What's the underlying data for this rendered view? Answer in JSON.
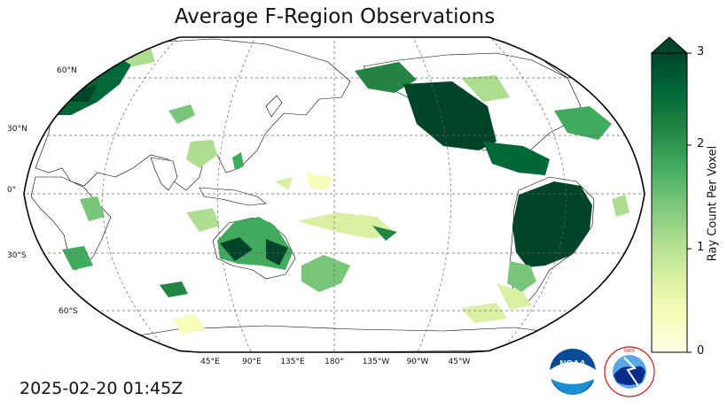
{
  "title": "Average F-Region Observations",
  "timestamp": "2025-02-20 01:45Z",
  "colorbar": {
    "label": "Ray Count Per Voxel",
    "ticks": [
      "0",
      "1",
      "2",
      "3"
    ],
    "min": 0,
    "max": 3,
    "extend": "max",
    "colormap": "YlGn",
    "colors": [
      "#ffffe5",
      "#f7fcb9",
      "#d9f0a3",
      "#addd8e",
      "#78c679",
      "#41ab5d",
      "#238443",
      "#006837",
      "#004529"
    ]
  },
  "map": {
    "projection": "Robinson",
    "central_longitude": 180,
    "lat_labels": [
      "60°N",
      "30°N",
      "0°",
      "30°S",
      "60°S"
    ],
    "lon_labels": [
      "45°E",
      "90°E",
      "135°E",
      "180°",
      "135°W",
      "90°W",
      "45°W"
    ],
    "gridlines": true,
    "coastlines": true,
    "borders": true
  },
  "logos": [
    {
      "name": "noaa-logo",
      "text": "NOAA"
    },
    {
      "name": "nws-logo",
      "text": "NATIONAL WEATHER SERVICE"
    }
  ]
}
